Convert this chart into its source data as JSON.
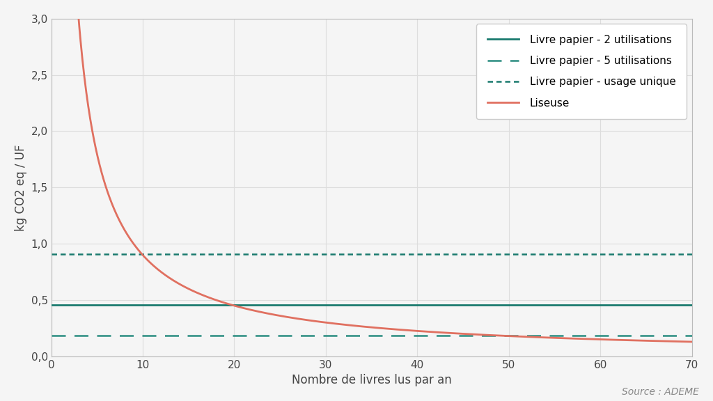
{
  "title": "",
  "xlabel": "Nombre de livres lus par an",
  "ylabel": "kg CO2 eq / UF",
  "xlim": [
    0,
    70
  ],
  "ylim": [
    0.0,
    3.0
  ],
  "xticks": [
    0,
    10,
    20,
    30,
    40,
    50,
    60,
    70
  ],
  "yticks": [
    0.0,
    0.5,
    1.0,
    1.5,
    2.0,
    2.5,
    3.0
  ],
  "background_color": "#f5f5f5",
  "plot_bg_color": "#f5f5f5",
  "grid_color": "#dddddd",
  "livre_2_value": 0.455,
  "livre_5_value": 0.182,
  "usage_unique_value": 0.91,
  "liseuse_total_co2": 9.0,
  "color_teal_solid": "#1a7a6e",
  "color_teal_dash": "#2a8c80",
  "color_teal_dense": "#1a7a6e",
  "color_orange": "#e07060",
  "legend_labels": [
    "Livre papier - 2 utilisations",
    "Livre papier - 5 utilisations",
    "Livre papier - usage unique",
    "Liseuse"
  ],
  "source": "Source : ADEME",
  "font_size_axis_label": 12,
  "font_size_tick": 11,
  "font_size_legend": 11,
  "font_size_source": 10
}
